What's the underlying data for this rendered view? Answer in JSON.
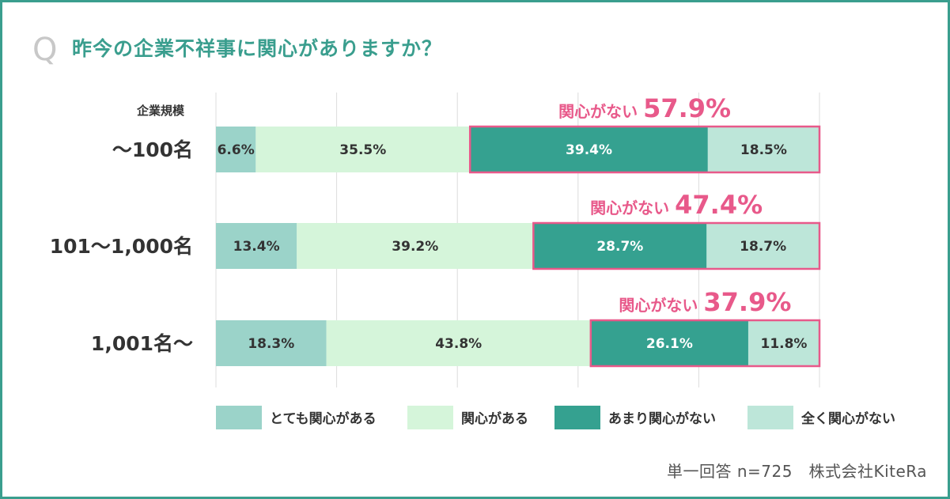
{
  "question": {
    "mark": "Q",
    "text": "昨今の企業不祥事に関心がありますか？"
  },
  "source": "単一回答 n=725　株式会社KiteRa",
  "chart_data": {
    "type": "bar",
    "orientation": "horizontal",
    "stacked": true,
    "y_axis_title": "企業規模",
    "categories": [
      "〜100名",
      "101〜1,000名",
      "1,001名〜"
    ],
    "series": [
      {
        "name": "とても関心がある",
        "values": [
          6.6,
          13.4,
          18.3
        ],
        "color": "#9bd3c9"
      },
      {
        "name": "関心がある",
        "values": [
          35.5,
          39.2,
          43.8
        ],
        "color": "#d5f5da"
      },
      {
        "name": "あまり関心がない",
        "values": [
          39.4,
          28.7,
          26.1
        ],
        "color": "#35a190"
      },
      {
        "name": "全く関心がない",
        "values": [
          18.5,
          18.7,
          11.8
        ],
        "color": "#bde6d9"
      }
    ],
    "value_labels": [
      [
        "6.6%",
        "35.5%",
        "39.4%",
        "18.5%"
      ],
      [
        "13.4%",
        "39.2%",
        "28.7%",
        "18.7%"
      ],
      [
        "18.3%",
        "43.8%",
        "26.1%",
        "11.8%"
      ]
    ],
    "annotations": [
      {
        "prefix": "関心がない",
        "value": "57.9%"
      },
      {
        "prefix": "関心がない",
        "value": "47.4%"
      },
      {
        "prefix": "関心がない",
        "value": "37.9%"
      }
    ],
    "highlight_color": "#e8598a",
    "xlim": [
      0,
      100
    ],
    "grid": true,
    "legend_position": "bottom"
  }
}
